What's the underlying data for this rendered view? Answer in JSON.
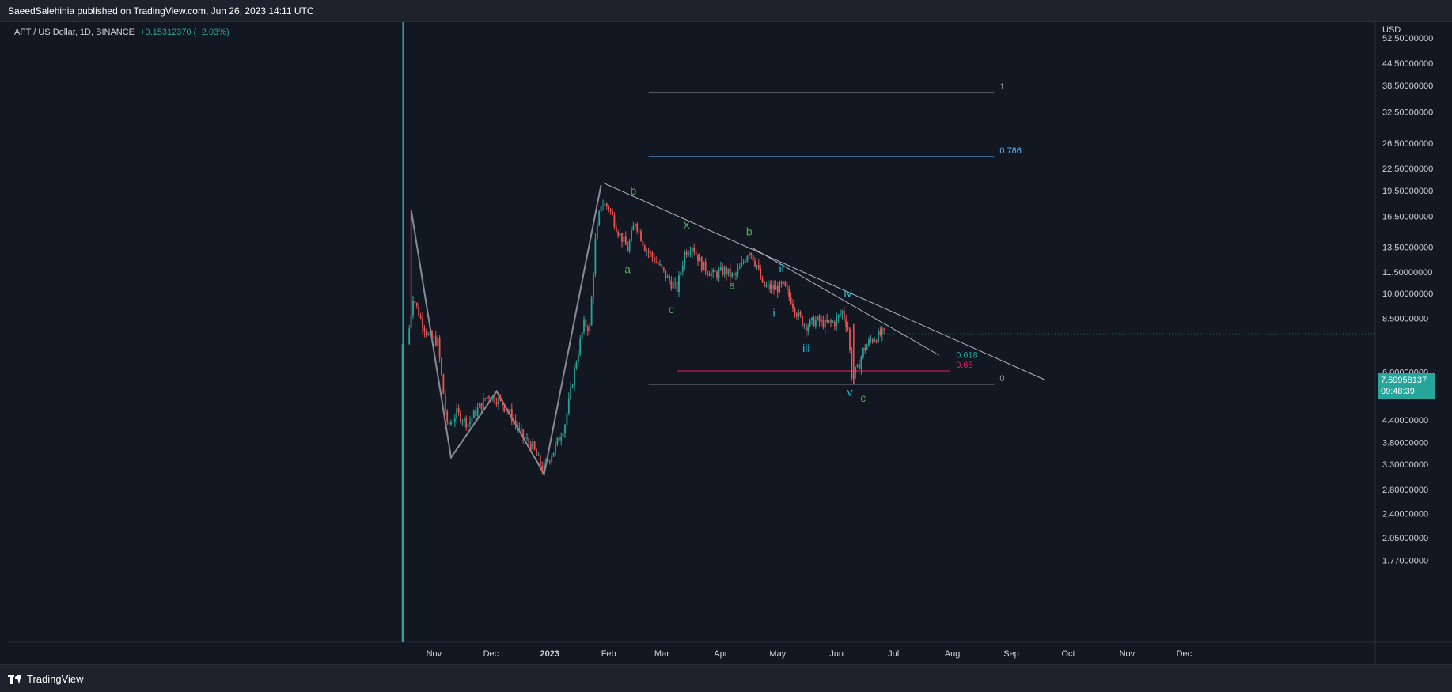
{
  "header": {
    "published_text": "SaeedSalehinia published on TradingView.com, Jun 26, 2023 14:11 UTC"
  },
  "symbol": {
    "name": "APT / US Dollar, 1D, BINANCE",
    "change": "+0.15312370 (+2.03%)"
  },
  "footer": {
    "brand": "TradingView"
  },
  "price_tag": {
    "price": "7.69958137",
    "countdown": "09:48:39"
  },
  "colors": {
    "background": "#131722",
    "up": "#26a69a",
    "down": "#ef5350",
    "wave_green": "#4caf50",
    "wave_cyan": "#26c6da",
    "fib_blue": "#64b5f6",
    "fib_teal": "#26a69a",
    "fib_pink": "#e91e63",
    "trendline": "#b2b5be",
    "pattern": "#8a8c93"
  },
  "chart_data": {
    "type": "candlestick",
    "scale": "log",
    "currency_label": "USD",
    "y_ticks": [
      "52.50000000",
      "44.50000000",
      "38.50000000",
      "32.50000000",
      "26.50000000",
      "22.50000000",
      "19.50000000",
      "16.50000000",
      "13.50000000",
      "11.50000000",
      "10.00000000",
      "8.50000000",
      "6.00000000",
      "5.20000000",
      "4.40000000",
      "3.80000000",
      "3.30000000",
      "2.80000000",
      "2.40000000",
      "2.05000000",
      "1.77000000"
    ],
    "x_labels": [
      {
        "label": "Nov",
        "date": "2022-11-01",
        "bold": false
      },
      {
        "label": "Dec",
        "date": "2022-12-01",
        "bold": false
      },
      {
        "label": "2023",
        "date": "2023-01-01",
        "bold": true
      },
      {
        "label": "Feb",
        "date": "2023-02-01",
        "bold": false
      },
      {
        "label": "Mar",
        "date": "2023-03-01",
        "bold": false
      },
      {
        "label": "Apr",
        "date": "2023-04-01",
        "bold": false
      },
      {
        "label": "May",
        "date": "2023-05-01",
        "bold": false
      },
      {
        "label": "Jun",
        "date": "2023-06-01",
        "bold": false
      },
      {
        "label": "Jul",
        "date": "2023-07-01",
        "bold": false
      },
      {
        "label": "Aug",
        "date": "2023-08-01",
        "bold": false
      },
      {
        "label": "Sep",
        "date": "2023-09-01",
        "bold": false
      },
      {
        "label": "Oct",
        "date": "2023-10-01",
        "bold": false
      },
      {
        "label": "Nov",
        "date": "2023-11-01",
        "bold": false
      },
      {
        "label": "Dec",
        "date": "2023-12-01",
        "bold": false
      }
    ],
    "price_path": [
      [
        "2022-10-19",
        7.2
      ],
      [
        "2022-10-22",
        9.8
      ],
      [
        "2022-10-26",
        8.5
      ],
      [
        "2022-10-30",
        7.6
      ],
      [
        "2022-11-04",
        7.3
      ],
      [
        "2022-11-09",
        4.2
      ],
      [
        "2022-11-14",
        4.6
      ],
      [
        "2022-11-20",
        4.3
      ],
      [
        "2022-11-26",
        4.8
      ],
      [
        "2022-12-01",
        5.2
      ],
      [
        "2022-12-06",
        5.0
      ],
      [
        "2022-12-12",
        4.6
      ],
      [
        "2022-12-18",
        4.0
      ],
      [
        "2022-12-24",
        3.7
      ],
      [
        "2022-12-29",
        3.2
      ],
      [
        "2023-01-04",
        3.6
      ],
      [
        "2023-01-10",
        4.3
      ],
      [
        "2023-01-16",
        6.5
      ],
      [
        "2023-01-20",
        8.2
      ],
      [
        "2023-01-23",
        8.0
      ],
      [
        "2023-01-26",
        14.0
      ],
      [
        "2023-01-29",
        18.0
      ],
      [
        "2023-02-02",
        17.5
      ],
      [
        "2023-02-07",
        15.0
      ],
      [
        "2023-02-12",
        13.3
      ],
      [
        "2023-02-16",
        16.0
      ],
      [
        "2023-02-21",
        13.5
      ],
      [
        "2023-02-27",
        12.3
      ],
      [
        "2023-03-05",
        11.0
      ],
      [
        "2023-03-10",
        10.3
      ],
      [
        "2023-03-14",
        13.0
      ],
      [
        "2023-03-18",
        13.7
      ],
      [
        "2023-03-23",
        12.0
      ],
      [
        "2023-03-29",
        11.3
      ],
      [
        "2023-04-04",
        11.6
      ],
      [
        "2023-04-09",
        11.1
      ],
      [
        "2023-04-13",
        12.0
      ],
      [
        "2023-04-17",
        13.3
      ],
      [
        "2023-04-21",
        12.0
      ],
      [
        "2023-04-24",
        10.5
      ],
      [
        "2023-04-30",
        10.3
      ],
      [
        "2023-05-05",
        10.5
      ],
      [
        "2023-05-09",
        9.6
      ],
      [
        "2023-05-13",
        8.6
      ],
      [
        "2023-05-17",
        8.1
      ],
      [
        "2023-05-22",
        8.4
      ],
      [
        "2023-05-27",
        8.2
      ],
      [
        "2023-06-01",
        8.3
      ],
      [
        "2023-06-05",
        8.9
      ],
      [
        "2023-06-08",
        8.0
      ],
      [
        "2023-06-10",
        5.9
      ],
      [
        "2023-06-13",
        6.1
      ],
      [
        "2023-06-16",
        6.9
      ],
      [
        "2023-06-20",
        7.4
      ],
      [
        "2023-06-26",
        7.7
      ]
    ],
    "spike": {
      "date": "2022-10-20",
      "high": 17.2
    },
    "fib_levels": [
      {
        "label": "1",
        "value": 36.8,
        "x1": "2023-02-22",
        "x2": "2023-08-23",
        "color": "#9598a1"
      },
      {
        "label": "0.786",
        "value": 24.3,
        "x1": "2023-02-22",
        "x2": "2023-08-23",
        "color": "#64b5f6"
      },
      {
        "label": "0.618",
        "value": 6.45,
        "x1": "2023-03-09",
        "x2": "2023-07-31",
        "color": "#26a69a"
      },
      {
        "label": "0.65",
        "value": 6.05,
        "x1": "2023-03-09",
        "x2": "2023-07-31",
        "color": "#e91e63"
      },
      {
        "label": "0",
        "value": 5.55,
        "x1": "2023-02-22",
        "x2": "2023-08-23",
        "color": "#9598a1"
      }
    ],
    "trendlines": [
      {
        "from": [
          "2023-01-29",
          20.5
        ],
        "to": [
          "2023-09-19",
          5.7
        ]
      },
      {
        "from": [
          "2023-04-18",
          13.4
        ],
        "to": [
          "2023-07-25",
          6.7
        ]
      }
    ],
    "pattern_line": [
      [
        "2022-10-20",
        17.2
      ],
      [
        "2022-11-10",
        3.45
      ],
      [
        "2022-12-04",
        5.3
      ],
      [
        "2022-12-29",
        3.1
      ],
      [
        "2023-01-28",
        20.2
      ]
    ],
    "wave_labels": [
      {
        "text": "b",
        "date": "2023-02-14",
        "price": 19.0,
        "color": "#4caf50"
      },
      {
        "text": "X",
        "date": "2023-03-14",
        "price": 15.2,
        "color": "#4caf50"
      },
      {
        "text": "b",
        "date": "2023-04-16",
        "price": 14.6,
        "color": "#4caf50"
      },
      {
        "text": "a",
        "date": "2023-02-11",
        "price": 11.4,
        "color": "#4caf50"
      },
      {
        "text": "c",
        "date": "2023-03-06",
        "price": 8.8,
        "color": "#4caf50"
      },
      {
        "text": "a",
        "date": "2023-04-07",
        "price": 10.3,
        "color": "#4caf50"
      },
      {
        "text": "c",
        "date": "2023-06-15",
        "price": 4.95,
        "color": "#4caf50"
      },
      {
        "text": "ii",
        "date": "2023-05-03",
        "price": 11.5,
        "color": "#26c6da"
      },
      {
        "text": "i",
        "date": "2023-04-29",
        "price": 8.6,
        "color": "#26c6da"
      },
      {
        "text": "iii",
        "date": "2023-05-16",
        "price": 6.85,
        "color": "#26c6da"
      },
      {
        "text": "iv",
        "date": "2023-06-07",
        "price": 9.8,
        "color": "#26c6da"
      },
      {
        "text": "v",
        "date": "2023-06-08",
        "price": 5.15,
        "color": "#26c6da"
      }
    ]
  }
}
